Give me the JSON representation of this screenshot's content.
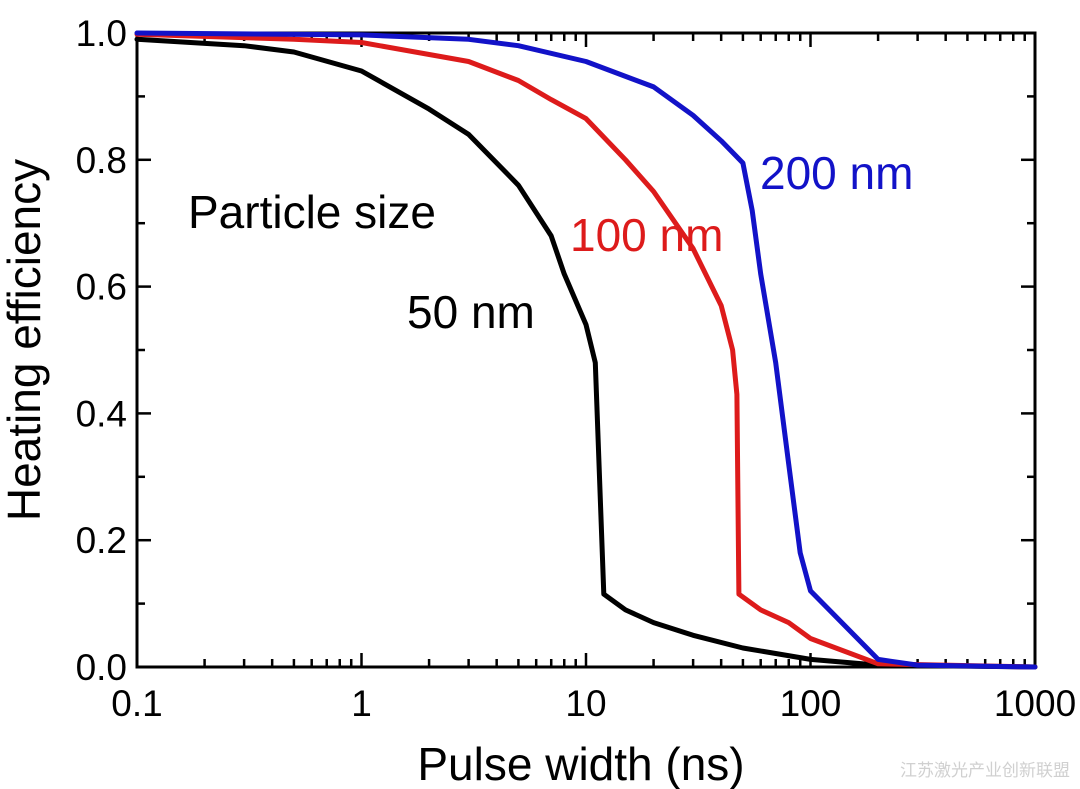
{
  "chart_data": {
    "type": "line",
    "xscale": "log",
    "xlim": [
      0.1,
      1000
    ],
    "ylim": [
      0.0,
      1.0
    ],
    "xlabel": "Pulse width (ns)",
    "ylabel": "Heating efficiency",
    "x_ticks": [
      0.1,
      1,
      10,
      100,
      1000
    ],
    "x_tick_labels": [
      "0.1",
      "1",
      "10",
      "100",
      "1000"
    ],
    "y_ticks": [
      0.0,
      0.2,
      0.4,
      0.6,
      0.8,
      1.0
    ],
    "y_tick_labels": [
      "0.0",
      "0.2",
      "0.4",
      "0.6",
      "0.8",
      "1.0"
    ],
    "legend_title": "Particle size",
    "series": [
      {
        "name": "50 nm",
        "color": "#000000",
        "x": [
          0.1,
          0.3,
          0.5,
          1,
          2,
          3,
          5,
          7,
          8,
          10,
          11,
          12,
          15,
          20,
          30,
          50,
          100,
          200,
          1000
        ],
        "y": [
          0.99,
          0.98,
          0.97,
          0.94,
          0.88,
          0.84,
          0.76,
          0.68,
          0.62,
          0.54,
          0.48,
          0.115,
          0.09,
          0.07,
          0.05,
          0.03,
          0.012,
          0.003,
          0.0
        ]
      },
      {
        "name": "100 nm",
        "color": "#dd1b1b",
        "x": [
          0.1,
          0.5,
          1,
          3,
          5,
          7,
          10,
          15,
          20,
          30,
          40,
          45,
          47,
          48,
          60,
          80,
          100,
          200,
          1000
        ],
        "y": [
          0.998,
          0.99,
          0.985,
          0.955,
          0.925,
          0.895,
          0.865,
          0.8,
          0.75,
          0.66,
          0.57,
          0.5,
          0.43,
          0.115,
          0.09,
          0.07,
          0.045,
          0.005,
          0.0
        ]
      },
      {
        "name": "200 nm",
        "color": "#1212c8",
        "x": [
          0.1,
          1,
          3,
          5,
          10,
          20,
          30,
          40,
          50,
          55,
          60,
          70,
          80,
          90,
          100,
          200,
          300,
          1000
        ],
        "y": [
          1.0,
          0.997,
          0.99,
          0.98,
          0.955,
          0.915,
          0.87,
          0.83,
          0.795,
          0.72,
          0.62,
          0.48,
          0.32,
          0.18,
          0.12,
          0.012,
          0.003,
          0.0
        ]
      }
    ]
  },
  "watermark": "江苏激光产业创新联盟"
}
